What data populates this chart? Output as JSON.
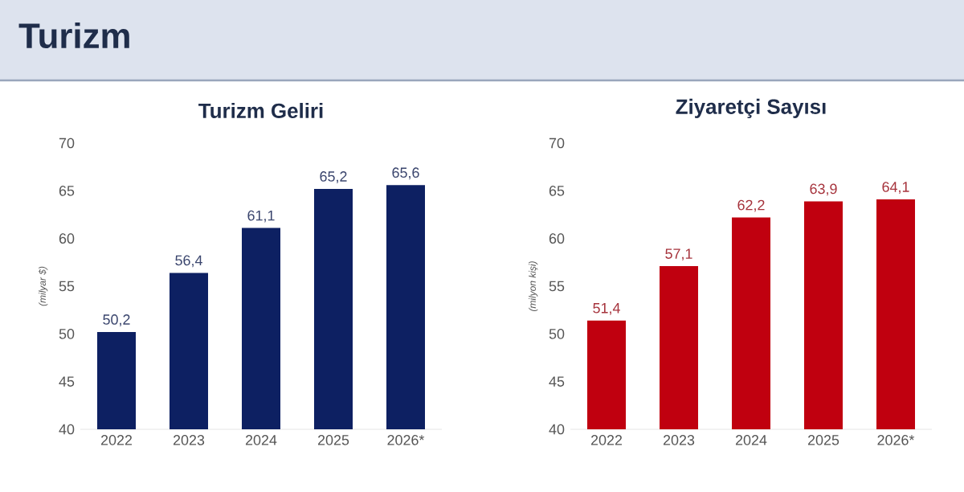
{
  "chart_data": [
    {
      "type": "bar",
      "title": "Turizm Geliri",
      "ylabel": "(milyar $)",
      "annotations": [
        "Turizm"
      ],
      "categories": [
        "2022",
        "2023",
        "2024",
        "2025",
        "2026*"
      ],
      "values": [
        50.2,
        56.4,
        61.1,
        65.2,
        65.6
      ],
      "value_labels": [
        "50,2",
        "56,4",
        "61,1",
        "65,2",
        "65,6"
      ],
      "color": "#0d2062",
      "ylim": [
        40,
        70
      ],
      "yticks": [
        40,
        45,
        50,
        55,
        60,
        65,
        70
      ]
    },
    {
      "type": "bar",
      "title": "Ziyaretçi Sayısı",
      "ylabel": "(milyon kişi)",
      "categories": [
        "2022",
        "2023",
        "2024",
        "2025",
        "2026*"
      ],
      "values": [
        51.4,
        57.1,
        62.2,
        63.9,
        64.1
      ],
      "value_labels": [
        "51,4",
        "57,1",
        "62,2",
        "63,9",
        "64,1"
      ],
      "color": "#c0000f",
      "ylim": [
        40,
        70
      ],
      "yticks": [
        40,
        45,
        50,
        55,
        60,
        65,
        70
      ]
    }
  ]
}
